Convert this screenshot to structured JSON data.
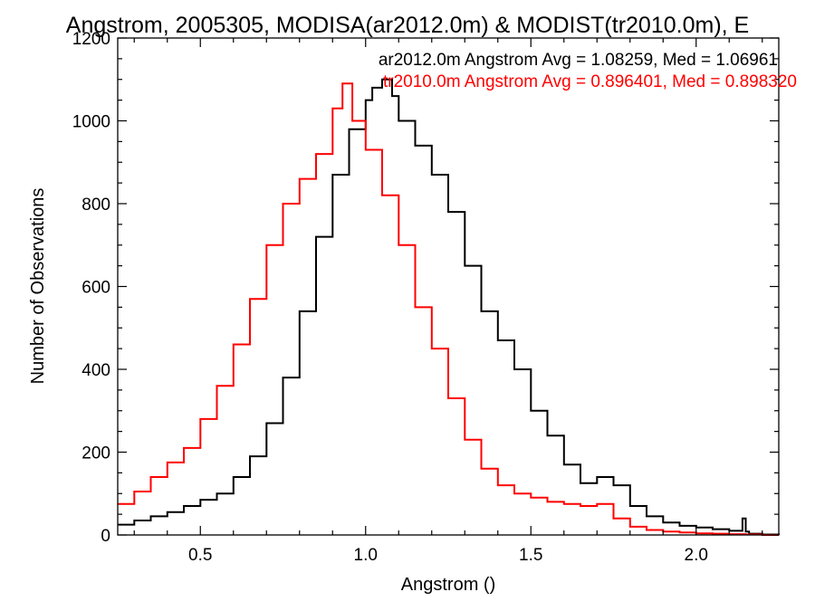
{
  "chart_data": {
    "type": "line",
    "title": "Angstrom, 2005305, MODISA(ar2012.0m) & MODIST(tr2010.0m), E",
    "xlabel": "Angstrom ()",
    "ylabel": "Number of Observations",
    "xlim": [
      0.25,
      2.25
    ],
    "ylim": [
      0,
      1200
    ],
    "xticks": [
      0.5,
      1.0,
      1.5,
      2.0
    ],
    "xtick_labels": [
      "0.5",
      "1.0",
      "1.5",
      "2.0"
    ],
    "yticks": [
      0,
      200,
      400,
      600,
      800,
      1000,
      1200
    ],
    "ytick_labels": [
      "0",
      "200",
      "400",
      "600",
      "800",
      "1000",
      "1200"
    ],
    "grid": false,
    "step": true,
    "annotations": [
      {
        "text": "ar2012.0m Angstrom Avg = 1.08259, Med = 1.06961",
        "color": "#000000"
      },
      {
        "text": "tr2010.0m Angstrom Avg = 0.896401, Med = 0.898320",
        "color": "#ff0000"
      }
    ],
    "series": [
      {
        "color": "#000000",
        "x": [
          0.25,
          0.3,
          0.35,
          0.4,
          0.45,
          0.5,
          0.55,
          0.6,
          0.65,
          0.7,
          0.75,
          0.8,
          0.85,
          0.9,
          0.95,
          1.0,
          1.02,
          1.05,
          1.08,
          1.1,
          1.15,
          1.2,
          1.25,
          1.3,
          1.35,
          1.4,
          1.45,
          1.5,
          1.55,
          1.6,
          1.65,
          1.7,
          1.75,
          1.8,
          1.85,
          1.9,
          1.95,
          2.0,
          2.05,
          2.1,
          2.14,
          2.15,
          2.16,
          2.2,
          2.25
        ],
        "values": [
          25,
          35,
          45,
          55,
          70,
          85,
          100,
          140,
          190,
          270,
          380,
          540,
          720,
          870,
          980,
          1050,
          1080,
          1100,
          1060,
          1000,
          940,
          870,
          780,
          650,
          540,
          470,
          400,
          300,
          240,
          170,
          125,
          140,
          120,
          70,
          45,
          30,
          22,
          18,
          14,
          10,
          40,
          8,
          3,
          1,
          0
        ]
      },
      {
        "color": "#ff0000",
        "x": [
          0.25,
          0.3,
          0.35,
          0.4,
          0.45,
          0.5,
          0.55,
          0.6,
          0.65,
          0.7,
          0.75,
          0.8,
          0.85,
          0.9,
          0.93,
          0.96,
          1.0,
          1.05,
          1.1,
          1.15,
          1.2,
          1.25,
          1.3,
          1.35,
          1.4,
          1.45,
          1.5,
          1.55,
          1.6,
          1.65,
          1.7,
          1.75,
          1.8,
          1.85,
          1.9,
          1.95,
          2.0,
          2.05,
          2.1,
          2.15,
          2.2
        ],
        "values": [
          75,
          105,
          140,
          175,
          210,
          280,
          360,
          460,
          570,
          700,
          800,
          860,
          920,
          1030,
          1090,
          1000,
          930,
          820,
          700,
          550,
          450,
          330,
          230,
          160,
          120,
          100,
          90,
          80,
          75,
          70,
          75,
          40,
          20,
          12,
          8,
          6,
          4,
          3,
          2,
          1,
          0
        ]
      }
    ]
  }
}
